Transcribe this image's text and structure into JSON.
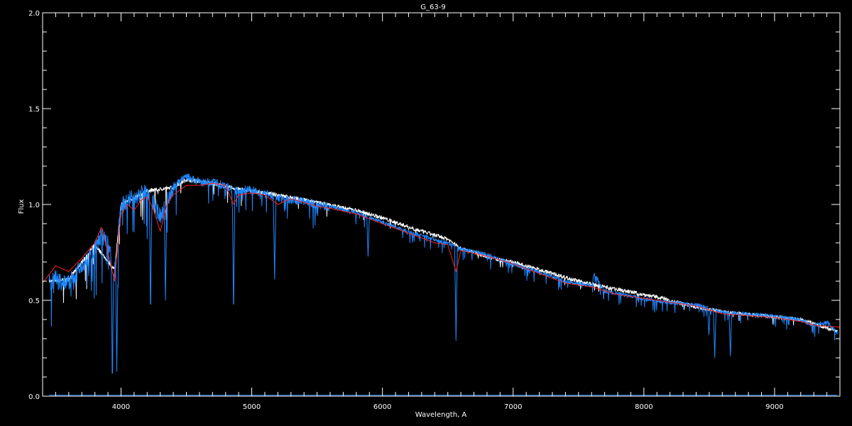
{
  "chart_data": {
    "type": "line",
    "title": "G_63-9",
    "xlabel": "Wavelength, A",
    "ylabel": "Flux",
    "xlim": [
      3400,
      9500
    ],
    "ylim": [
      0.0,
      2.0
    ],
    "x_ticks": [
      4000,
      5000,
      6000,
      7000,
      8000,
      9000
    ],
    "x_minor_step": 100,
    "y_ticks": [
      "0.0",
      "0.5",
      "1.0",
      "1.5",
      "2.0"
    ],
    "y_minor_step": 0.1,
    "grid": false,
    "background": "#000000",
    "series": [
      {
        "color": "#ffffff",
        "x": [
          3450,
          3600,
          3800,
          3950,
          4000,
          4200,
          4400,
          4500,
          4700,
          4900,
          5200,
          5500,
          5800,
          6000,
          6300,
          6500,
          6600,
          6700,
          6900,
          7000,
          7200,
          7500,
          7700,
          8000,
          8150,
          8300,
          8600,
          8900,
          9200,
          9480
        ],
        "y": [
          0.6,
          0.61,
          0.79,
          0.66,
          1.0,
          1.07,
          1.09,
          1.13,
          1.11,
          1.08,
          1.05,
          1.01,
          0.97,
          0.93,
          0.86,
          0.82,
          0.77,
          0.75,
          0.71,
          0.7,
          0.66,
          0.6,
          0.57,
          0.53,
          0.51,
          0.48,
          0.44,
          0.42,
          0.4,
          0.34
        ]
      },
      {
        "color": "#1e88ff",
        "x": [
          3450,
          3500,
          3600,
          3700,
          3800,
          3850,
          3900,
          3950,
          4000,
          4100,
          4200,
          4300,
          4400,
          4500,
          4600,
          4700,
          4800,
          4850,
          4900,
          5000,
          5200,
          5400,
          5600,
          5800,
          6000,
          6200,
          6400,
          6500,
          6600,
          6800,
          7000,
          7200,
          7400,
          7600,
          7620,
          7700,
          8000,
          8200,
          8400,
          8600,
          8800,
          9000,
          9200,
          9300,
          9400,
          9480
        ],
        "y": [
          0.6,
          0.62,
          0.6,
          0.68,
          0.78,
          0.85,
          0.8,
          0.65,
          1.0,
          1.05,
          1.08,
          0.95,
          1.1,
          1.15,
          1.12,
          1.12,
          1.1,
          1.08,
          1.08,
          1.08,
          1.04,
          1.02,
          0.99,
          0.96,
          0.91,
          0.86,
          0.82,
          0.8,
          0.77,
          0.74,
          0.69,
          0.65,
          0.6,
          0.58,
          0.64,
          0.55,
          0.51,
          0.49,
          0.48,
          0.44,
          0.43,
          0.42,
          0.4,
          0.37,
          0.39,
          0.33
        ],
        "absorption_lines": [
          [
            3934,
            0.12
          ],
          [
            3968,
            0.13
          ],
          [
            4226,
            0.48
          ],
          [
            4340,
            0.5
          ],
          [
            4861,
            0.48
          ],
          [
            5175,
            0.61
          ],
          [
            5890,
            0.73
          ],
          [
            6563,
            0.29
          ],
          [
            8498,
            0.32
          ],
          [
            8542,
            0.2
          ],
          [
            8662,
            0.21
          ]
        ]
      },
      {
        "color": "#ff2020",
        "x": [
          3400,
          3500,
          3600,
          3700,
          3800,
          3850,
          3900,
          3950,
          4000,
          4050,
          4100,
          4150,
          4200,
          4250,
          4300,
          4350,
          4400,
          4500,
          4600,
          4700,
          4800,
          4861,
          4900,
          5000,
          5100,
          5200,
          5300,
          5400,
          5500,
          5600,
          5800,
          6000,
          6200,
          6400,
          6500,
          6563,
          6600,
          6800,
          7000,
          7200,
          7400,
          7600,
          7800,
          8000,
          8200,
          8400,
          8600,
          8800,
          9000,
          9200,
          9300,
          9500
        ],
        "y": [
          0.59,
          0.68,
          0.65,
          0.72,
          0.8,
          0.88,
          0.75,
          0.6,
          0.95,
          1.0,
          0.97,
          1.02,
          1.04,
          0.97,
          0.86,
          1.0,
          1.05,
          1.1,
          1.1,
          1.11,
          1.1,
          1.0,
          1.05,
          1.06,
          1.05,
          1.0,
          1.03,
          1.01,
          0.99,
          0.98,
          0.95,
          0.9,
          0.85,
          0.8,
          0.79,
          0.65,
          0.76,
          0.73,
          0.69,
          0.64,
          0.59,
          0.57,
          0.53,
          0.51,
          0.49,
          0.47,
          0.43,
          0.42,
          0.41,
          0.39,
          0.37,
          0.36
        ]
      },
      {
        "color": "#1e88ff",
        "x": [
          3450,
          9480
        ],
        "y": [
          0.005,
          0.005
        ]
      }
    ]
  }
}
